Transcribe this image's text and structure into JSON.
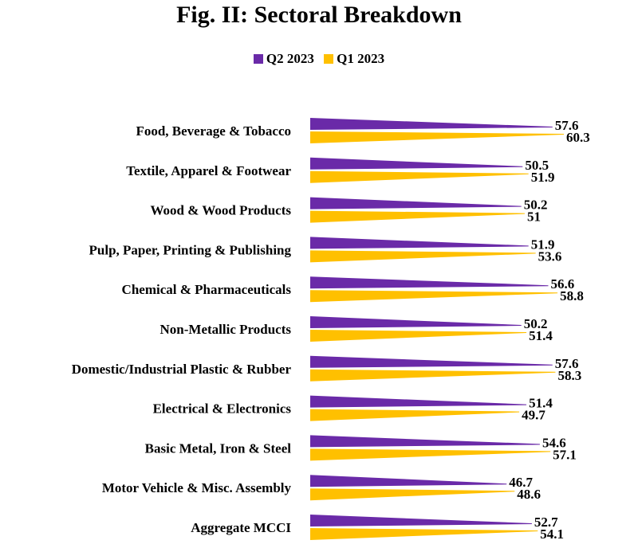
{
  "title": "Fig. II: Sectoral Breakdown",
  "legend": [
    {
      "label": "Q2 2023",
      "color": "#6a2aa8"
    },
    {
      "label": "Q1 2023",
      "color": "#ffc000"
    }
  ],
  "chart_data": {
    "type": "bar",
    "orientation": "horizontal",
    "title": "Fig. II: Sectoral Breakdown",
    "xlabel": "",
    "ylabel": "",
    "categories": [
      "Food, Beverage & Tobacco",
      "Textile, Apparel & Footwear",
      "Wood & Wood Products",
      "Pulp, Paper, Printing & Publishing",
      "Chemical & Pharmaceuticals",
      "Non-Metallic Products",
      "Domestic/Industrial Plastic & Rubber",
      "Electrical & Electronics",
      "Basic Metal, Iron & Steel",
      "Motor Vehicle & Misc. Assembly",
      "Aggregate MCCI"
    ],
    "series": [
      {
        "name": "Q2 2023",
        "color": "#6a2aa8",
        "values": [
          57.6,
          50.5,
          50.2,
          51.9,
          56.6,
          50.2,
          57.6,
          51.4,
          54.6,
          46.7,
          52.7
        ],
        "labels": [
          "57.6",
          "50.5",
          "50.2",
          "51.9",
          "56.6",
          "50.2",
          "57.6",
          "51.4",
          "54.6",
          "46.7",
          "52.7"
        ]
      },
      {
        "name": "Q1 2023",
        "color": "#ffc000",
        "values": [
          60.3,
          51.9,
          51.0,
          53.6,
          58.8,
          51.4,
          58.3,
          49.7,
          57.1,
          48.6,
          54.1
        ],
        "labels": [
          "60.3",
          "51.9",
          "51",
          "53.6",
          "58.8",
          "51.4",
          "58.3",
          "49.7",
          "57.1",
          "48.6",
          "54.1"
        ]
      }
    ],
    "xlim": [
      0,
      65
    ],
    "grid": false,
    "legend_position": "top-center"
  }
}
